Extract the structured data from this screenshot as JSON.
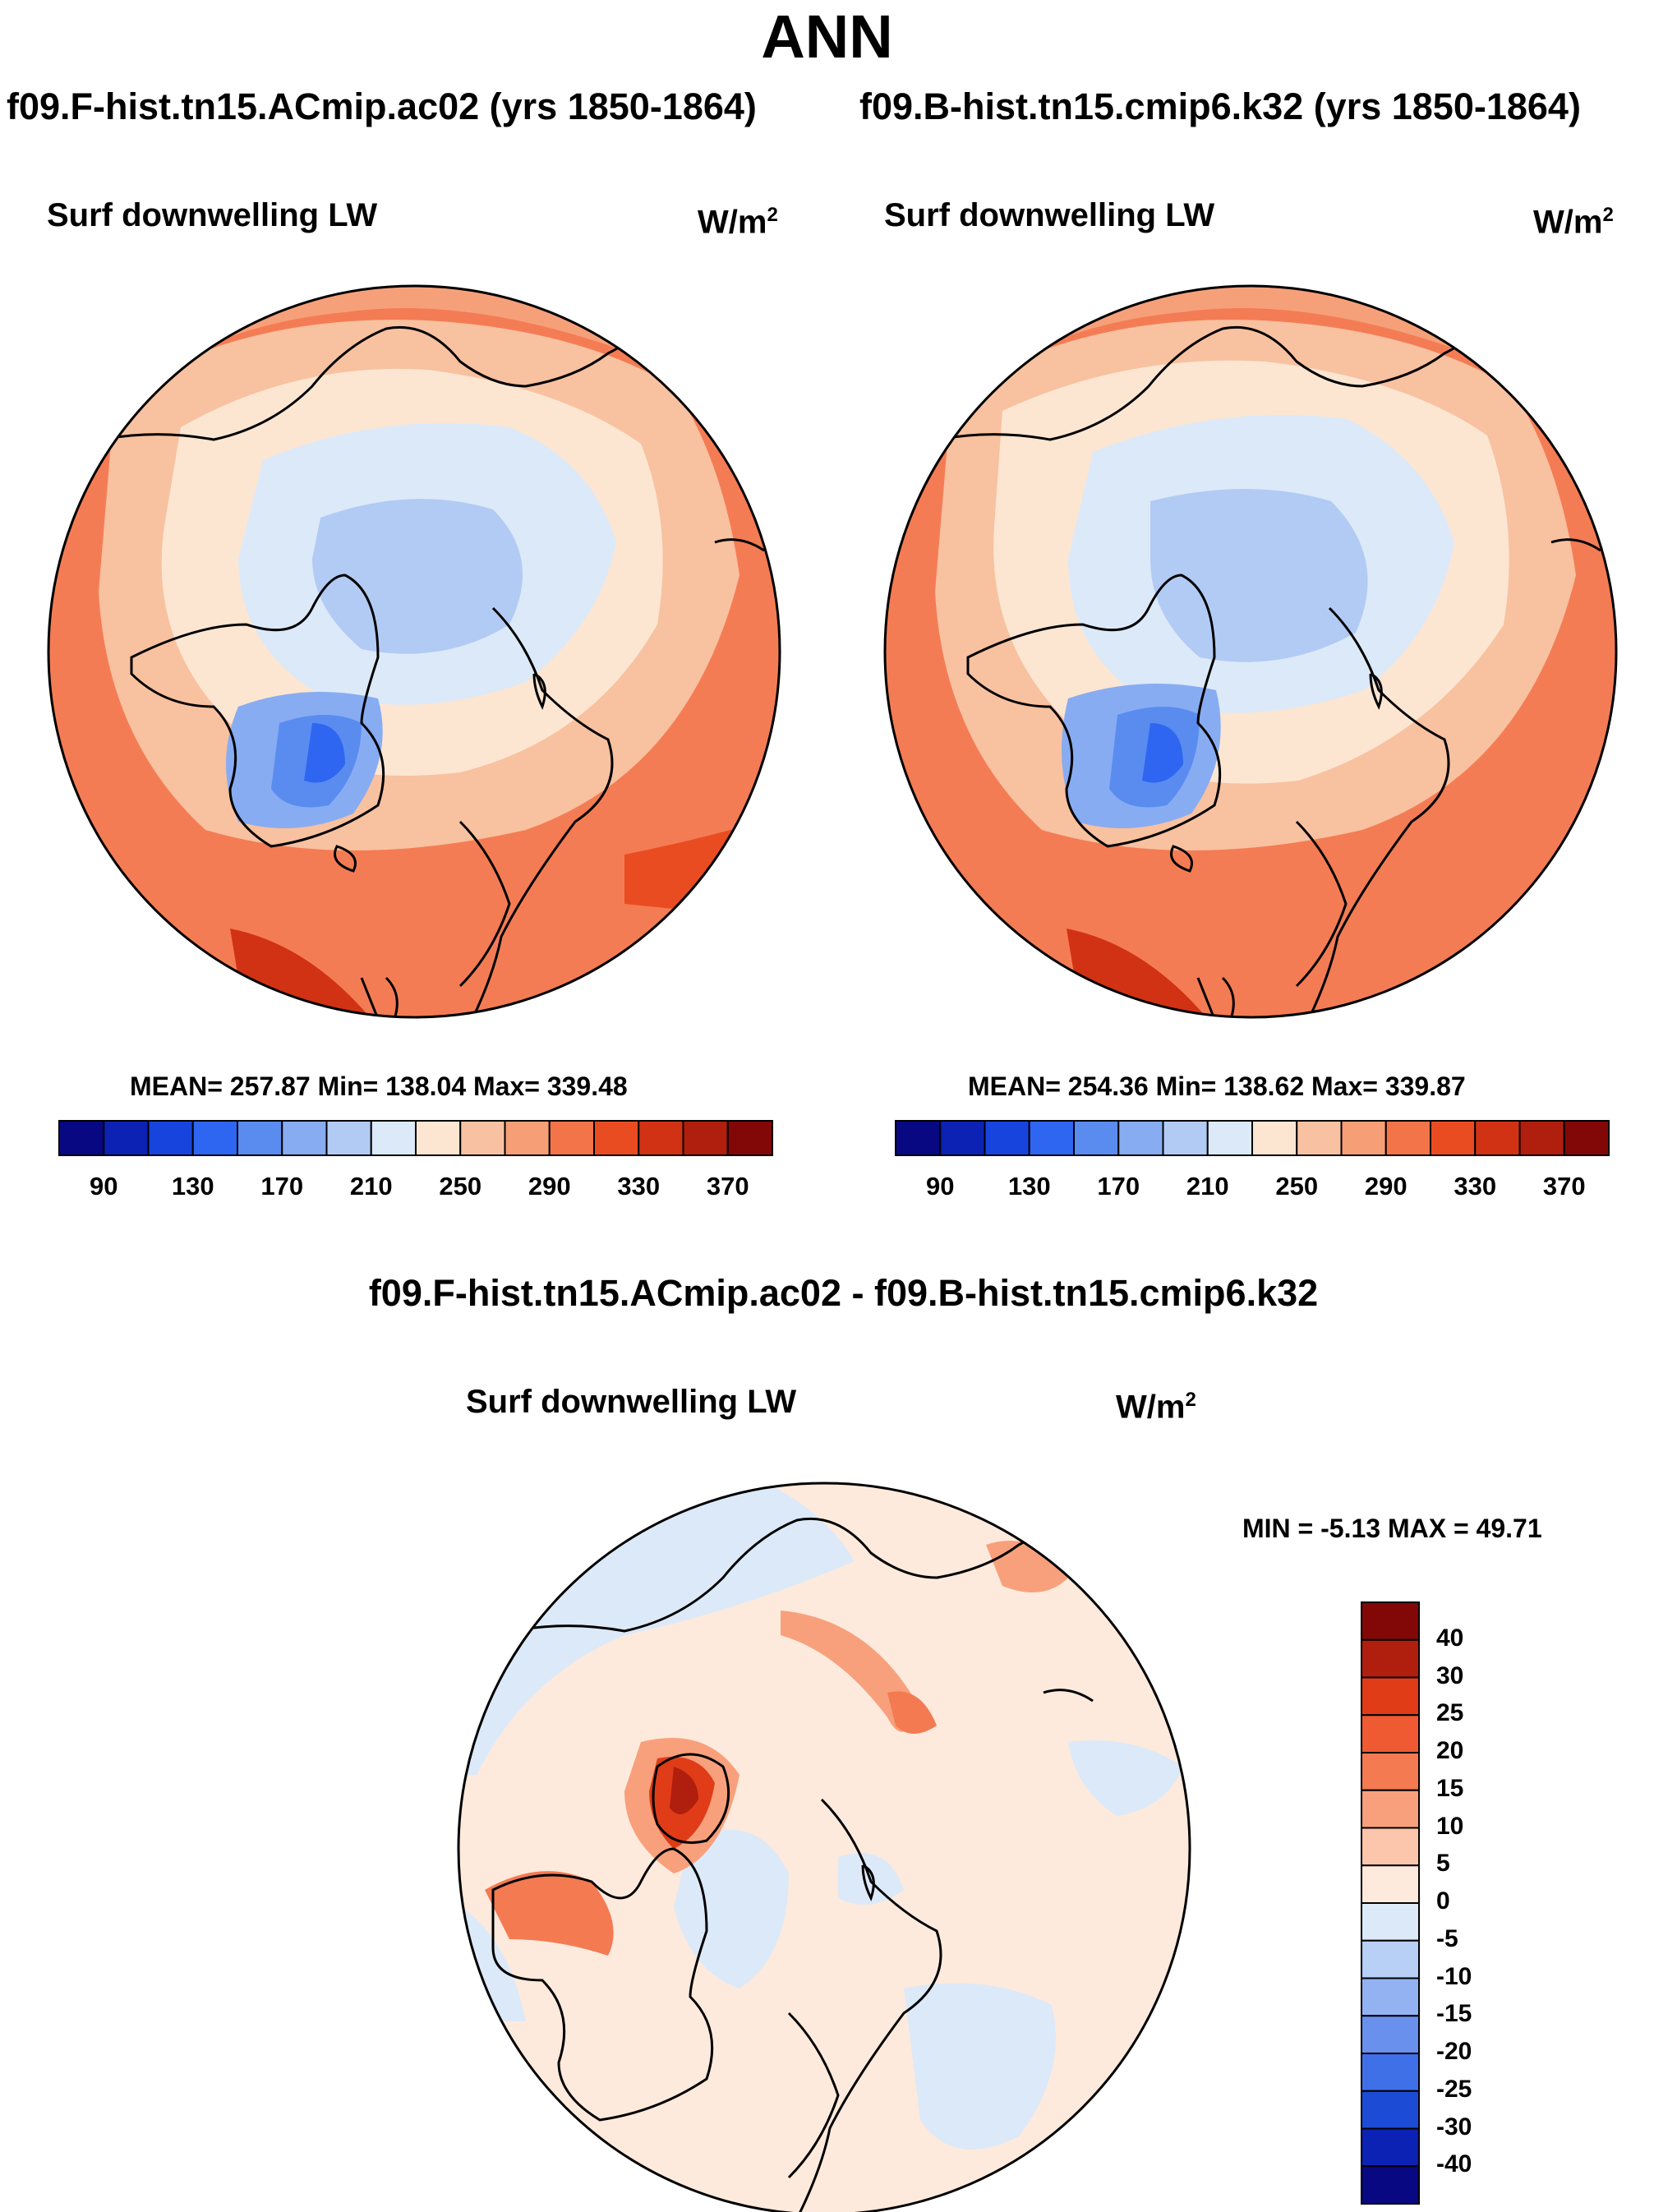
{
  "header": {
    "title": "ANN",
    "case1": "f09.F-hist.tn15.ACmip.ac02 (yrs 1850-1864)",
    "case2": "f09.B-hist.tn15.cmip6.k32 (yrs 1850-1864)",
    "diff_title": "f09.F-hist.tn15.ACmip.ac02 - f09.B-hist.tn15.cmip6.k32"
  },
  "panels": [
    {
      "name": "Surf downwelling LW",
      "units": "W/m",
      "units_sup": "2",
      "stats": "MEAN= 257.87  Min= 138.04  Max= 339.48"
    },
    {
      "name": "Surf downwelling LW",
      "units": "W/m",
      "units_sup": "2",
      "stats": "MEAN= 254.36  Min= 138.62  Max= 339.87"
    },
    {
      "name": "Surf downwelling LW",
      "units": "W/m",
      "units_sup": "2",
      "stats": "MIN =  -5.13 MAX =  49.71"
    }
  ],
  "colorbar_abs": {
    "labels": [
      "90",
      "130",
      "170",
      "210",
      "250",
      "290",
      "330",
      "370"
    ],
    "colors": [
      "#080882",
      "#0c22b4",
      "#1844de",
      "#2e66f2",
      "#5a8cf0",
      "#88acf2",
      "#b2cbf4",
      "#dce9f8",
      "#fce6d2",
      "#f8c2a2",
      "#f69e76",
      "#f4744a",
      "#ea4c22",
      "#d23214",
      "#b01e0e",
      "#820808"
    ]
  },
  "colorbar_diff": {
    "labels": [
      "40",
      "30",
      "25",
      "20",
      "15",
      "10",
      "5",
      "0",
      "-5",
      "-10",
      "-15",
      "-20",
      "-25",
      "-30",
      "-40"
    ],
    "colors": [
      "#820808",
      "#b01e0e",
      "#e03c18",
      "#f05a32",
      "#f47a52",
      "#f8a07c",
      "#fbc6ac",
      "#fdeadc",
      "#dce9f8",
      "#b8cff6",
      "#92b2f2",
      "#6a90ee",
      "#4070e8",
      "#1c4cd6",
      "#0c22b4",
      "#080882"
    ]
  }
}
